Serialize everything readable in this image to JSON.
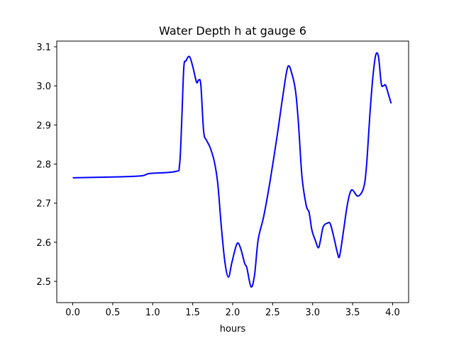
{
  "chart_data": {
    "type": "line",
    "title": "Water Depth h at gauge 6",
    "xlabel": "hours",
    "ylabel": "",
    "xlim": [
      -0.2,
      4.2
    ],
    "ylim": [
      2.4457,
      3.1145
    ],
    "grid": false,
    "xticks": [
      0.0,
      0.5,
      1.0,
      1.5,
      2.0,
      2.5,
      3.0,
      3.5,
      4.0
    ],
    "xtick_labels": [
      "0.0",
      "0.5",
      "1.0",
      "1.5",
      "2.0",
      "2.5",
      "3.0",
      "3.5",
      "4.0"
    ],
    "yticks": [
      2.5,
      2.6,
      2.7,
      2.8,
      2.9,
      3.0,
      3.1
    ],
    "ytick_labels": [
      "2.5",
      "2.6",
      "2.7",
      "2.8",
      "2.9",
      "3.0",
      "3.1"
    ],
    "series": [
      {
        "name": "h",
        "color": "#0000ff",
        "x": [
          0,
          0.504,
          0.858,
          0.965,
          1.283,
          1.336,
          1.363,
          1.389,
          1.416,
          1.46,
          1.504,
          1.549,
          1.575,
          1.602,
          1.637,
          1.673,
          1.717,
          1.77,
          1.814,
          1.858,
          1.903,
          1.947,
          1.991,
          2.053,
          2.097,
          2.15,
          2.177,
          2.23,
          2.274,
          2.319,
          2.389,
          2.469,
          2.558,
          2.628,
          2.69,
          2.743,
          2.788,
          2.823,
          2.867,
          2.92,
          2.956,
          2.991,
          3.035,
          3.071,
          3.097,
          3.133,
          3.186,
          3.221,
          3.265,
          3.31,
          3.336,
          3.381,
          3.425,
          3.46,
          3.496,
          3.566,
          3.637,
          3.673,
          3.717,
          3.752,
          3.788,
          3.823,
          3.858,
          3.885,
          3.912,
          3.947,
          3.982
        ],
        "y": [
          2.765,
          2.767,
          2.77,
          2.776,
          2.781,
          2.799,
          2.912,
          3.047,
          3.064,
          3.075,
          3.047,
          3.009,
          3.015,
          3.002,
          2.884,
          2.861,
          2.843,
          2.807,
          2.749,
          2.64,
          2.549,
          2.511,
          2.549,
          2.596,
          2.586,
          2.546,
          2.535,
          2.486,
          2.517,
          2.607,
          2.667,
          2.758,
          2.875,
          2.975,
          3.049,
          3.029,
          2.984,
          2.903,
          2.767,
          2.694,
          2.676,
          2.631,
          2.604,
          2.586,
          2.604,
          2.64,
          2.649,
          2.647,
          2.613,
          2.573,
          2.564,
          2.622,
          2.685,
          2.721,
          2.734,
          2.718,
          2.739,
          2.794,
          2.93,
          3.02,
          3.078,
          3.075,
          3.006,
          3.0,
          3.002,
          2.979,
          2.955
        ]
      }
    ]
  }
}
